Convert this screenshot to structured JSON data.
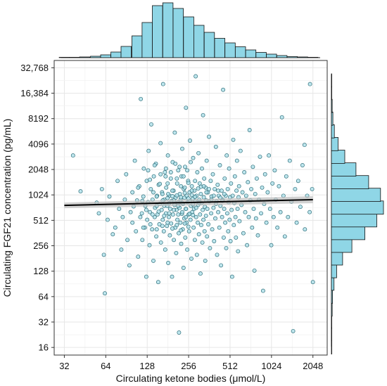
{
  "chart_data": {
    "type": "scatter",
    "xlabel": "Circulating ketone bodies (μmol/L)",
    "ylabel": "Circulating FGF21 concentration (pg/mL)",
    "x_scale": "log2",
    "y_scale": "log2",
    "xlim": [
      27,
      2600
    ],
    "ylim": [
      13,
      40000
    ],
    "x_ticks": [
      32,
      64,
      128,
      256,
      512,
      1024,
      2048
    ],
    "x_tick_labels": [
      "32",
      "64",
      "128",
      "256",
      "512",
      "1024",
      "2048"
    ],
    "y_ticks": [
      16,
      32,
      64,
      128,
      256,
      512,
      1024,
      2048,
      4096,
      8192,
      16384,
      32768
    ],
    "y_tick_labels": [
      "16",
      "32",
      "64",
      "128",
      "256",
      "512",
      "1024",
      "2048",
      "4096",
      "8192",
      "16,384",
      "32,768"
    ],
    "grid": true,
    "point_color": "#a8dde8",
    "point_edge_color": "#2f6f7a",
    "histogram_color": "#8fd6e6",
    "regression_line_color": "#000000",
    "regression_band_color": "#bdbdbd",
    "regression_line": {
      "x": [
        32,
        2048
      ],
      "y": [
        770,
        900
      ]
    },
    "points": [
      [
        37,
        3000
      ],
      [
        42,
        1130
      ],
      [
        55,
        830
      ],
      [
        57,
        620
      ],
      [
        60,
        1200
      ],
      [
        62,
        200
      ],
      [
        63,
        70
      ],
      [
        66,
        520
      ],
      [
        68,
        980
      ],
      [
        72,
        350
      ],
      [
        75,
        420
      ],
      [
        78,
        1500
      ],
      [
        80,
        700
      ],
      [
        83,
        230
      ],
      [
        85,
        560
      ],
      [
        88,
        900
      ],
      [
        90,
        1800
      ],
      [
        92,
        300
      ],
      [
        95,
        150
      ],
      [
        97,
        640
      ],
      [
        100,
        1100
      ],
      [
        100,
        480
      ],
      [
        102,
        750
      ],
      [
        104,
        2600
      ],
      [
        106,
        380
      ],
      [
        108,
        880
      ],
      [
        110,
        190
      ],
      [
        112,
        1300
      ],
      [
        114,
        560
      ],
      [
        115,
        14000
      ],
      [
        117,
        620
      ],
      [
        118,
        300
      ],
      [
        120,
        980
      ],
      [
        121,
        2100
      ],
      [
        123,
        420
      ],
      [
        124,
        760
      ],
      [
        126,
        110
      ],
      [
        127,
        1500
      ],
      [
        128,
        520
      ],
      [
        130,
        840
      ],
      [
        131,
        3400
      ],
      [
        133,
        260
      ],
      [
        134,
        640
      ],
      [
        136,
        1200
      ],
      [
        137,
        7000
      ],
      [
        139,
        400
      ],
      [
        140,
        900
      ],
      [
        142,
        170
      ],
      [
        143,
        1700
      ],
      [
        145,
        560
      ],
      [
        146,
        720
      ],
      [
        148,
        2400
      ],
      [
        149,
        330
      ],
      [
        151,
        1000
      ],
      [
        152,
        600
      ],
      [
        154,
        95
      ],
      [
        155,
        1350
      ],
      [
        157,
        460
      ],
      [
        158,
        800
      ],
      [
        160,
        4200
      ],
      [
        161,
        280
      ],
      [
        163,
        680
      ],
      [
        164,
        1100
      ],
      [
        166,
        520
      ],
      [
        167,
        21000
      ],
      [
        169,
        380
      ],
      [
        170,
        900
      ],
      [
        172,
        1900
      ],
      [
        173,
        230
      ],
      [
        175,
        620
      ],
      [
        176,
        1250
      ],
      [
        178,
        440
      ],
      [
        179,
        760
      ],
      [
        181,
        3000
      ],
      [
        182,
        160
      ],
      [
        184,
        560
      ],
      [
        185,
        1000
      ],
      [
        187,
        340
      ],
      [
        188,
        700
      ],
      [
        190,
        1600
      ],
      [
        191,
        470
      ],
      [
        193,
        870
      ],
      [
        194,
        110
      ],
      [
        196,
        2500
      ],
      [
        197,
        600
      ],
      [
        199,
        1150
      ],
      [
        200,
        300
      ],
      [
        202,
        780
      ],
      [
        203,
        5600
      ],
      [
        205,
        420
      ],
      [
        206,
        950
      ],
      [
        208,
        210
      ],
      [
        209,
        680
      ],
      [
        211,
        1400
      ],
      [
        212,
        520
      ],
      [
        214,
        830
      ],
      [
        215,
        2000
      ],
      [
        217,
        360
      ],
      [
        218,
        24
      ],
      [
        220,
        720
      ],
      [
        221,
        1050
      ],
      [
        223,
        480
      ],
      [
        224,
        900
      ],
      [
        226,
        270
      ],
      [
        227,
        1700
      ],
      [
        229,
        610
      ],
      [
        230,
        3600
      ],
      [
        232,
        400
      ],
      [
        233,
        800
      ],
      [
        235,
        140
      ],
      [
        236,
        1200
      ],
      [
        238,
        540
      ],
      [
        239,
        950
      ],
      [
        241,
        2200
      ],
      [
        242,
        320
      ],
      [
        244,
        700
      ],
      [
        245,
        11000
      ],
      [
        247,
        480
      ],
      [
        248,
        1000
      ],
      [
        250,
        230
      ],
      [
        252,
        840
      ],
      [
        254,
        1500
      ],
      [
        256,
        600
      ],
      [
        258,
        380
      ],
      [
        260,
        1100
      ],
      [
        262,
        4500
      ],
      [
        264,
        520
      ],
      [
        266,
        760
      ],
      [
        268,
        180
      ],
      [
        270,
        1300
      ],
      [
        272,
        640
      ],
      [
        274,
        920
      ],
      [
        276,
        2800
      ],
      [
        278,
        420
      ],
      [
        280,
        700
      ],
      [
        282,
        1150
      ],
      [
        284,
        300
      ],
      [
        286,
        860
      ],
      [
        288,
        26000
      ],
      [
        290,
        560
      ],
      [
        292,
        1000
      ],
      [
        294,
        200
      ],
      [
        296,
        1900
      ],
      [
        298,
        480
      ],
      [
        300,
        780
      ],
      [
        302,
        3200
      ],
      [
        304,
        350
      ],
      [
        306,
        900
      ],
      [
        308,
        1400
      ],
      [
        310,
        600
      ],
      [
        312,
        120
      ],
      [
        314,
        1050
      ],
      [
        316,
        450
      ],
      [
        318,
        820
      ],
      [
        320,
        2100
      ],
      [
        322,
        280
      ],
      [
        324,
        680
      ],
      [
        326,
        9000
      ],
      [
        328,
        520
      ],
      [
        330,
        960
      ],
      [
        332,
        1600
      ],
      [
        334,
        380
      ],
      [
        336,
        740
      ],
      [
        338,
        170
      ],
      [
        340,
        1250
      ],
      [
        342,
        580
      ],
      [
        344,
        880
      ],
      [
        346,
        2600
      ],
      [
        348,
        330
      ],
      [
        350,
        700
      ],
      [
        353,
        1100
      ],
      [
        356,
        460
      ],
      [
        360,
        5000
      ],
      [
        363,
        860
      ],
      [
        366,
        240
      ],
      [
        370,
        1500
      ],
      [
        373,
        620
      ],
      [
        376,
        980
      ],
      [
        380,
        400
      ],
      [
        384,
        1800
      ],
      [
        388,
        720
      ],
      [
        392,
        290
      ],
      [
        396,
        1200
      ],
      [
        400,
        540
      ],
      [
        404,
        3800
      ],
      [
        408,
        860
      ],
      [
        412,
        200
      ],
      [
        416,
        1350
      ],
      [
        420,
        640
      ],
      [
        424,
        1000
      ],
      [
        428,
        420
      ],
      [
        432,
        2300
      ],
      [
        436,
        760
      ],
      [
        440,
        150
      ],
      [
        444,
        1150
      ],
      [
        448,
        560
      ],
      [
        452,
        900
      ],
      [
        456,
        18000
      ],
      [
        460,
        320
      ],
      [
        464,
        700
      ],
      [
        468,
        1600
      ],
      [
        472,
        480
      ],
      [
        476,
        1000
      ],
      [
        480,
        240
      ],
      [
        484,
        3000
      ],
      [
        488,
        620
      ],
      [
        492,
        1200
      ],
      [
        496,
        380
      ],
      [
        500,
        840
      ],
      [
        504,
        2100
      ],
      [
        508,
        520
      ],
      [
        512,
        960
      ],
      [
        516,
        290
      ],
      [
        520,
        1400
      ],
      [
        525,
        680
      ],
      [
        530,
        110
      ],
      [
        535,
        1000
      ],
      [
        540,
        4600
      ],
      [
        545,
        450
      ],
      [
        550,
        820
      ],
      [
        555,
        1700
      ],
      [
        560,
        560
      ],
      [
        565,
        320
      ],
      [
        570,
        1150
      ],
      [
        575,
        2600
      ],
      [
        580,
        700
      ],
      [
        585,
        220
      ],
      [
        590,
        960
      ],
      [
        595,
        1300
      ],
      [
        600,
        500
      ],
      [
        610,
        3400
      ],
      [
        620,
        780
      ],
      [
        630,
        1100
      ],
      [
        640,
        360
      ],
      [
        650,
        1900
      ],
      [
        660,
        640
      ],
      [
        670,
        1000
      ],
      [
        680,
        260
      ],
      [
        690,
        1450
      ],
      [
        700,
        560
      ],
      [
        710,
        6000
      ],
      [
        720,
        880
      ],
      [
        730,
        1200
      ],
      [
        740,
        420
      ],
      [
        750,
        2200
      ],
      [
        760,
        700
      ],
      [
        770,
        130
      ],
      [
        780,
        1050
      ],
      [
        790,
        540
      ],
      [
        800,
        1600
      ],
      [
        815,
        340
      ],
      [
        830,
        900
      ],
      [
        845,
        2900
      ],
      [
        860,
        620
      ],
      [
        875,
        1250
      ],
      [
        890,
        75
      ],
      [
        905,
        800
      ],
      [
        920,
        1800
      ],
      [
        940,
        480
      ],
      [
        960,
        1100
      ],
      [
        980,
        3000
      ],
      [
        1000,
        700
      ],
      [
        1020,
        260
      ],
      [
        1040,
        1400
      ],
      [
        1060,
        560
      ],
      [
        1080,
        2000
      ],
      [
        1100,
        900
      ],
      [
        1130,
        420
      ],
      [
        1160,
        1300
      ],
      [
        1190,
        640
      ],
      [
        1220,
        8500
      ],
      [
        1250,
        1000
      ],
      [
        1280,
        330
      ],
      [
        1310,
        1700
      ],
      [
        1350,
        560
      ],
      [
        1390,
        2600
      ],
      [
        1430,
        850
      ],
      [
        1470,
        25
      ],
      [
        1520,
        1200
      ],
      [
        1560,
        480
      ],
      [
        1600,
        1500
      ],
      [
        1660,
        740
      ],
      [
        1720,
        2300
      ],
      [
        1790,
        400
      ],
      [
        1860,
        1000
      ],
      [
        1940,
        640
      ],
      [
        2020,
        1200
      ],
      [
        2048,
        95
      ],
      [
        1950,
        21000
      ],
      [
        1780,
        4000
      ],
      [
        180,
        1400
      ],
      [
        195,
        1150
      ],
      [
        210,
        1600
      ],
      [
        225,
        1300
      ],
      [
        240,
        1250
      ],
      [
        255,
        1420
      ],
      [
        270,
        1150
      ],
      [
        285,
        1500
      ],
      [
        300,
        1220
      ],
      [
        315,
        1280
      ],
      [
        170,
        760
      ],
      [
        185,
        820
      ],
      [
        200,
        880
      ],
      [
        215,
        760
      ],
      [
        230,
        820
      ],
      [
        245,
        700
      ],
      [
        260,
        860
      ],
      [
        275,
        790
      ],
      [
        290,
        720
      ],
      [
        305,
        830
      ],
      [
        150,
        980
      ],
      [
        165,
        1050
      ],
      [
        180,
        940
      ],
      [
        195,
        990
      ],
      [
        210,
        1010
      ],
      [
        225,
        960
      ],
      [
        240,
        1080
      ],
      [
        255,
        930
      ],
      [
        270,
        1020
      ],
      [
        285,
        970
      ],
      [
        140,
        600
      ],
      [
        155,
        650
      ],
      [
        170,
        580
      ],
      [
        185,
        620
      ],
      [
        200,
        680
      ],
      [
        215,
        600
      ],
      [
        230,
        640
      ],
      [
        245,
        560
      ],
      [
        260,
        610
      ],
      [
        275,
        590
      ],
      [
        130,
        2000
      ],
      [
        145,
        2300
      ],
      [
        160,
        1800
      ],
      [
        175,
        2100
      ],
      [
        190,
        1900
      ],
      [
        205,
        2400
      ],
      [
        220,
        2200
      ],
      [
        235,
        1700
      ],
      [
        250,
        2000
      ],
      [
        265,
        2500
      ],
      [
        120,
        420
      ],
      [
        135,
        460
      ],
      [
        150,
        400
      ],
      [
        165,
        440
      ],
      [
        180,
        480
      ],
      [
        195,
        410
      ],
      [
        210,
        450
      ],
      [
        225,
        390
      ],
      [
        240,
        470
      ],
      [
        255,
        430
      ],
      [
        330,
        1300
      ],
      [
        345,
        1100
      ],
      [
        360,
        1200
      ],
      [
        375,
        900
      ],
      [
        390,
        1000
      ],
      [
        405,
        800
      ],
      [
        420,
        1150
      ],
      [
        435,
        950
      ],
      [
        450,
        870
      ],
      [
        465,
        1050
      ],
      [
        110,
        1250
      ],
      [
        118,
        870
      ],
      [
        126,
        680
      ],
      [
        134,
        1550
      ],
      [
        142,
        1100
      ],
      [
        150,
        760
      ],
      [
        158,
        1380
      ],
      [
        166,
        880
      ],
      [
        174,
        1700
      ],
      [
        182,
        1050
      ]
    ],
    "x_histogram": {
      "bin_centers": [
        32,
        38,
        45,
        54,
        64,
        76,
        90,
        108,
        128,
        152,
        181,
        215,
        256,
        304,
        362,
        431,
        512,
        609,
        724,
        861,
        1024,
        1218,
        1448,
        1722,
        2048
      ],
      "counts": [
        1,
        1,
        2,
        4,
        8,
        16,
        32,
        62,
        100,
        148,
        156,
        140,
        116,
        92,
        72,
        55,
        42,
        31,
        22,
        15,
        10,
        6,
        3,
        2,
        1
      ]
    },
    "y_histogram": {
      "bin_centers": [
        16,
        23,
        32,
        45,
        64,
        91,
        128,
        181,
        256,
        362,
        512,
        724,
        1024,
        1448,
        2048,
        2896,
        4096,
        5793,
        8192,
        11585,
        16384,
        23170,
        32768
      ],
      "counts": [
        1,
        1,
        1,
        2,
        3,
        7,
        14,
        30,
        55,
        90,
        122,
        140,
        132,
        100,
        66,
        36,
        18,
        8,
        4,
        2,
        1,
        1,
        0
      ]
    }
  }
}
